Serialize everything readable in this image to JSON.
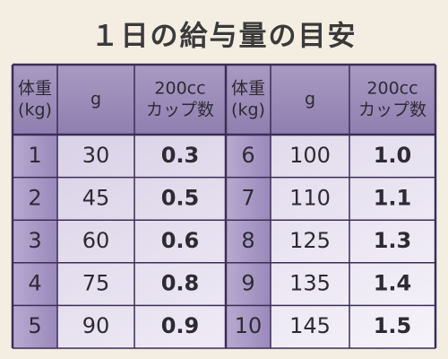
{
  "title": "１日の給与量の目安",
  "table": {
    "header": [
      [
        "体重",
        "(kg)"
      ],
      [
        "g"
      ],
      [
        "200cc",
        "カップ数"
      ],
      [
        "体重",
        "(kg)"
      ],
      [
        "g"
      ],
      [
        "200cc",
        "カップ数"
      ]
    ],
    "rows": [
      [
        "1",
        "30",
        "0.3",
        "6",
        "100",
        "1.0"
      ],
      [
        "2",
        "45",
        "0.5",
        "7",
        "110",
        "1.1"
      ],
      [
        "3",
        "60",
        "0.6",
        "8",
        "125",
        "1.3"
      ],
      [
        "4",
        "75",
        "0.8",
        "9",
        "135",
        "1.4"
      ],
      [
        "5",
        "90",
        "0.9",
        "10",
        "145",
        "1.5"
      ]
    ]
  }
}
